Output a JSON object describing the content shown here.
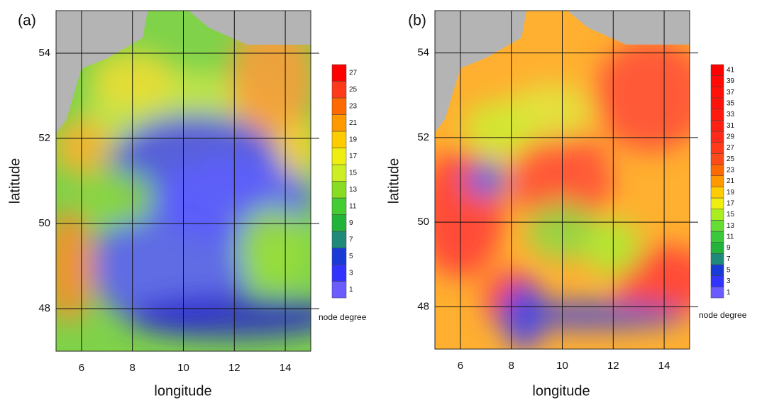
{
  "panels": [
    {
      "label": "(a)",
      "x_label": "longitude",
      "y_label": "latitude",
      "xlim": [
        5,
        15
      ],
      "ylim": [
        47,
        55
      ],
      "xticks": [
        6,
        8,
        10,
        12,
        14
      ],
      "yticks": [
        48,
        50,
        52,
        54
      ],
      "colorbar": {
        "title": "node degree",
        "levels": [
          1,
          3,
          5,
          7,
          9,
          11,
          13,
          15,
          17,
          19,
          21,
          23,
          25,
          27
        ],
        "colors": [
          "#6a5cff",
          "#3333ff",
          "#1a3ad8",
          "#1f8a7a",
          "#22b43a",
          "#44cc33",
          "#88dd22",
          "#ccee22",
          "#eeee11",
          "#ffcc00",
          "#ff9900",
          "#ff6a00",
          "#ff3a1a",
          "#ff0000"
        ]
      }
    },
    {
      "label": "(b)",
      "x_label": "longitude",
      "y_label": "latitude",
      "xlim": [
        5,
        15
      ],
      "ylim": [
        47,
        55
      ],
      "xticks": [
        6,
        8,
        10,
        12,
        14
      ],
      "yticks": [
        48,
        50,
        52,
        54
      ],
      "colorbar": {
        "title": "node degree",
        "levels": [
          1,
          3,
          5,
          7,
          9,
          11,
          13,
          15,
          17,
          19,
          21,
          23,
          25,
          27,
          29,
          31,
          33,
          35,
          37,
          39,
          41
        ],
        "colors": [
          "#6a5cff",
          "#3333ff",
          "#1a3ad8",
          "#1f8a7a",
          "#22b43a",
          "#3cc83c",
          "#66dd33",
          "#aaee22",
          "#eeee11",
          "#ffcc00",
          "#ff9900",
          "#ff6a00",
          "#ff4a1a",
          "#ff3a1a",
          "#ff2a1a",
          "#ff2014",
          "#ff1a10",
          "#ff140c",
          "#ff1008",
          "#ff0a04",
          "#ff0000"
        ]
      }
    }
  ]
}
